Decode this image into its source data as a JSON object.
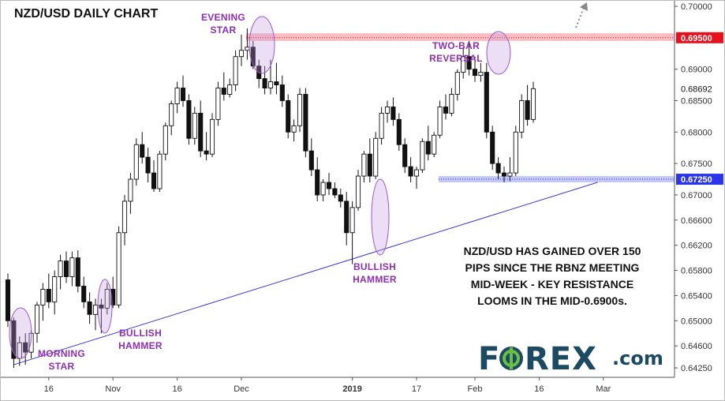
{
  "chart_data": {
    "type": "candlestick",
    "title": "NZD/USD DAILY CHART",
    "ylim": [
      0.641,
      0.701
    ],
    "y_ticks": [
      "0.70000",
      "0.69000",
      "0.68500",
      "0.68000",
      "0.67500",
      "0.67000",
      "0.66600",
      "0.66200",
      "0.65800",
      "0.65400",
      "0.65000",
      "0.64600",
      "0.64250"
    ],
    "y_tick_values": [
      0.7,
      0.69,
      0.685,
      0.68,
      0.675,
      0.67,
      0.666,
      0.662,
      0.658,
      0.654,
      0.65,
      0.646,
      0.6425
    ],
    "x_ticks": [
      {
        "label": "16",
        "index": 7,
        "bold": false
      },
      {
        "label": "Nov",
        "index": 18,
        "bold": false
      },
      {
        "label": "16",
        "index": 29,
        "bold": false
      },
      {
        "label": "Dec",
        "index": 40,
        "bold": false
      },
      {
        "label": "2019",
        "index": 59,
        "bold": true
      },
      {
        "label": "17",
        "index": 70,
        "bold": false
      },
      {
        "label": "Feb",
        "index": 80,
        "bold": false
      },
      {
        "label": "16",
        "index": 91,
        "bold": false
      },
      {
        "label": "Mar",
        "index": 102,
        "bold": false
      }
    ],
    "levels": [
      {
        "label": "0.69500",
        "value": 0.695,
        "color": "#e8101c",
        "zone": [
          0.6945,
          0.6957
        ]
      },
      {
        "label": "0.67250",
        "value": 0.6725,
        "color": "#2a36e8",
        "zone": [
          0.672,
          0.673
        ]
      }
    ],
    "current_price": {
      "label": "0.68692",
      "value": 0.6869
    },
    "trendline": {
      "start": {
        "index": 1,
        "value": 0.643
      },
      "end": {
        "index": 101,
        "value": 0.672
      }
    },
    "annotations": [
      {
        "name": "morning-star",
        "lines": [
          "MORNING",
          "STAR"
        ],
        "index": 3
      },
      {
        "name": "bullish-hammer-1",
        "lines": [
          "BULLISH",
          "HAMMER"
        ],
        "index": 16
      },
      {
        "name": "evening-star",
        "lines": [
          "EVENING",
          "STAR"
        ],
        "index": 41
      },
      {
        "name": "bullish-hammer-2",
        "lines": [
          "BULLISH",
          "HAMMER"
        ],
        "index": 60
      },
      {
        "name": "two-bar-reversal",
        "lines": [
          "TWO-BAR",
          "REVERSAL"
        ],
        "index": 79
      }
    ],
    "note": [
      "NZD/USD HAS GAINED OVER 150",
      "PIPS SINCE THE RBNZ MEETING",
      "MID-WEEK - KEY RESISTANCE",
      "LOOMS IN THE MID-0.6900s."
    ],
    "candles": [
      [
        0.6565,
        0.6575,
        0.649,
        0.65
      ],
      [
        0.65,
        0.6505,
        0.6425,
        0.644
      ],
      [
        0.644,
        0.6475,
        0.6428,
        0.6465
      ],
      [
        0.6465,
        0.648,
        0.643,
        0.645
      ],
      [
        0.645,
        0.6485,
        0.644,
        0.648
      ],
      [
        0.648,
        0.653,
        0.6465,
        0.6525
      ],
      [
        0.6525,
        0.656,
        0.65,
        0.655
      ],
      [
        0.655,
        0.6575,
        0.652,
        0.653
      ],
      [
        0.653,
        0.658,
        0.651,
        0.657
      ],
      [
        0.657,
        0.6605,
        0.655,
        0.6595
      ],
      [
        0.6595,
        0.661,
        0.656,
        0.657
      ],
      [
        0.657,
        0.661,
        0.6555,
        0.66
      ],
      [
        0.66,
        0.6612,
        0.6545,
        0.6555
      ],
      [
        0.6555,
        0.657,
        0.652,
        0.653
      ],
      [
        0.653,
        0.6545,
        0.6495,
        0.651
      ],
      [
        0.651,
        0.6535,
        0.6485,
        0.6525
      ],
      [
        0.6525,
        0.6535,
        0.648,
        0.652
      ],
      [
        0.652,
        0.656,
        0.651,
        0.655
      ],
      [
        0.655,
        0.657,
        0.652,
        0.6525
      ],
      [
        0.6525,
        0.665,
        0.652,
        0.664
      ],
      [
        0.664,
        0.67,
        0.662,
        0.669
      ],
      [
        0.669,
        0.6735,
        0.667,
        0.6725
      ],
      [
        0.6725,
        0.679,
        0.6715,
        0.678
      ],
      [
        0.678,
        0.68,
        0.675,
        0.676
      ],
      [
        0.676,
        0.6775,
        0.672,
        0.6735
      ],
      [
        0.6735,
        0.6755,
        0.6705,
        0.671
      ],
      [
        0.671,
        0.677,
        0.6705,
        0.6765
      ],
      [
        0.6765,
        0.6815,
        0.6755,
        0.681
      ],
      [
        0.681,
        0.685,
        0.6795,
        0.6845
      ],
      [
        0.6845,
        0.688,
        0.683,
        0.687
      ],
      [
        0.687,
        0.689,
        0.684,
        0.685
      ],
      [
        0.685,
        0.686,
        0.678,
        0.679
      ],
      [
        0.679,
        0.684,
        0.678,
        0.683
      ],
      [
        0.683,
        0.685,
        0.676,
        0.677
      ],
      [
        0.677,
        0.68,
        0.6755,
        0.6765
      ],
      [
        0.6765,
        0.683,
        0.676,
        0.682
      ],
      [
        0.682,
        0.688,
        0.681,
        0.687
      ],
      [
        0.687,
        0.6895,
        0.685,
        0.686
      ],
      [
        0.686,
        0.6885,
        0.6855,
        0.6875
      ],
      [
        0.6875,
        0.693,
        0.6865,
        0.692
      ],
      [
        0.692,
        0.6955,
        0.6905,
        0.693
      ],
      [
        0.693,
        0.6965,
        0.6915,
        0.6935
      ],
      [
        0.6935,
        0.6945,
        0.69,
        0.6905
      ],
      [
        0.6905,
        0.6915,
        0.687,
        0.6885
      ],
      [
        0.6885,
        0.6905,
        0.686,
        0.687
      ],
      [
        0.687,
        0.6915,
        0.686,
        0.688
      ],
      [
        0.688,
        0.691,
        0.686,
        0.6875
      ],
      [
        0.6875,
        0.689,
        0.684,
        0.685
      ],
      [
        0.685,
        0.686,
        0.679,
        0.68
      ],
      [
        0.68,
        0.682,
        0.6785,
        0.681
      ],
      [
        0.681,
        0.687,
        0.68,
        0.686
      ],
      [
        0.686,
        0.687,
        0.676,
        0.677
      ],
      [
        0.677,
        0.679,
        0.673,
        0.674
      ],
      [
        0.674,
        0.676,
        0.669,
        0.67
      ],
      [
        0.67,
        0.6725,
        0.669,
        0.672
      ],
      [
        0.672,
        0.6735,
        0.67,
        0.671
      ],
      [
        0.671,
        0.672,
        0.6695,
        0.67
      ],
      [
        0.67,
        0.671,
        0.668,
        0.669
      ],
      [
        0.669,
        0.6705,
        0.662,
        0.664
      ],
      [
        0.664,
        0.669,
        0.659,
        0.668
      ],
      [
        0.668,
        0.674,
        0.6675,
        0.673
      ],
      [
        0.673,
        0.677,
        0.672,
        0.6765
      ],
      [
        0.6765,
        0.679,
        0.672,
        0.673
      ],
      [
        0.673,
        0.68,
        0.6725,
        0.679
      ],
      [
        0.679,
        0.684,
        0.678,
        0.683
      ],
      [
        0.683,
        0.685,
        0.6815,
        0.684
      ],
      [
        0.684,
        0.6855,
        0.681,
        0.682
      ],
      [
        0.682,
        0.683,
        0.677,
        0.678
      ],
      [
        0.678,
        0.679,
        0.6735,
        0.6745
      ],
      [
        0.6745,
        0.676,
        0.672,
        0.673
      ],
      [
        0.673,
        0.6745,
        0.671,
        0.674
      ],
      [
        0.674,
        0.679,
        0.6735,
        0.6785
      ],
      [
        0.6785,
        0.681,
        0.6755,
        0.6765
      ],
      [
        0.6765,
        0.68,
        0.676,
        0.6795
      ],
      [
        0.6795,
        0.685,
        0.679,
        0.684
      ],
      [
        0.684,
        0.686,
        0.682,
        0.683
      ],
      [
        0.683,
        0.687,
        0.6825,
        0.686
      ],
      [
        0.686,
        0.69,
        0.685,
        0.6895
      ],
      [
        0.6895,
        0.6935,
        0.6885,
        0.692
      ],
      [
        0.692,
        0.6945,
        0.689,
        0.69
      ],
      [
        0.69,
        0.692,
        0.688,
        0.689
      ],
      [
        0.689,
        0.691,
        0.688,
        0.6895
      ],
      [
        0.6895,
        0.691,
        0.679,
        0.68
      ],
      [
        0.68,
        0.681,
        0.674,
        0.675
      ],
      [
        0.675,
        0.676,
        0.6725,
        0.6735
      ],
      [
        0.6735,
        0.6745,
        0.672,
        0.673
      ],
      [
        0.673,
        0.676,
        0.6722,
        0.6735
      ],
      [
        0.6735,
        0.681,
        0.673,
        0.68
      ],
      [
        0.68,
        0.686,
        0.679,
        0.685
      ],
      [
        0.685,
        0.6875,
        0.681,
        0.682
      ],
      [
        0.682,
        0.688,
        0.6815,
        0.6869
      ]
    ]
  },
  "branding": {
    "logo_part1": "F",
    "logo_part2": "REX",
    "logo_suffix": ".com",
    "primary_color": "#1c4a63",
    "accent_color": "#6cbf45"
  }
}
